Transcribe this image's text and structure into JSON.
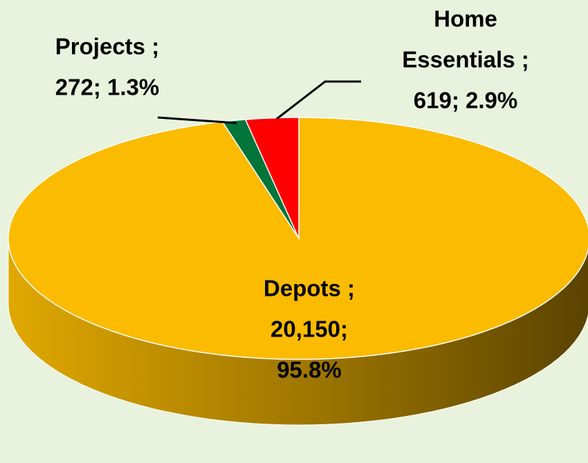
{
  "chart_data": {
    "type": "pie",
    "three_d": true,
    "categories": [
      "Depots",
      "Projects",
      "Home Essentials"
    ],
    "values": [
      20150,
      272,
      619
    ],
    "value_labels": [
      [
        "Depots ;",
        "20,150;",
        "95.8%"
      ],
      [
        "Projects ;",
        "272; 1.3%"
      ],
      [
        "Home",
        "Essentials ;",
        "619; 2.9%"
      ]
    ],
    "colors": [
      "#fbbb00",
      "#00753a",
      "#ff0000"
    ]
  }
}
